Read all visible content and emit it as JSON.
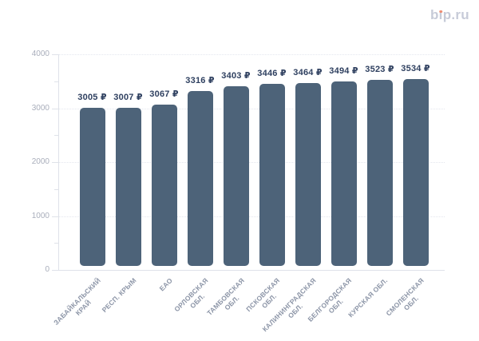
{
  "logo": {
    "text": "bip.ru",
    "part_b": "b",
    "part_i_dotless": "ı",
    "part_rest": "p.ru",
    "color": "#c7cbd8",
    "dot_color": "#ee8d73"
  },
  "chart_data": {
    "type": "bar",
    "title": "",
    "xlabel": "",
    "ylabel": "",
    "unit": "₽",
    "categories": [
      "ЗАБАЙКАЛЬСКИЙ КРАЙ",
      "РЕСП. КРЫМ",
      "ЕАО",
      "ОРЛОВСКАЯ ОБЛ.",
      "ТАМБОВСКАЯ ОБЛ.",
      "ПСКОВСКАЯ ОБЛ.",
      "КАЛИНИНГРАДСКАЯ ОБЛ.",
      "БЕЛГОРОДСКАЯ ОБЛ.",
      "КУРСКАЯ ОБЛ.",
      "СМОЛЕНСКАЯ ОБЛ."
    ],
    "x_label_lines": [
      [
        "ЗАБАЙКАЛЬСКИЙ",
        "КРАЙ"
      ],
      [
        "РЕСП. КРЫМ"
      ],
      [
        "ЕАО"
      ],
      [
        "ОРЛОВСКАЯ",
        "ОБЛ."
      ],
      [
        "ТАМБОВСКАЯ",
        "ОБЛ."
      ],
      [
        "ПСКОВСКАЯ",
        "ОБЛ."
      ],
      [
        "КАЛИНИНГРАДСКАЯ",
        "ОБЛ."
      ],
      [
        "БЕЛГОРОДСКАЯ",
        "ОБЛ."
      ],
      [
        "КУРСКАЯ ОБЛ."
      ],
      [
        "СМОЛЕНСКАЯ",
        "ОБЛ."
      ]
    ],
    "values": [
      3005,
      3007,
      3067,
      3316,
      3403,
      3446,
      3464,
      3494,
      3523,
      3534
    ],
    "value_labels": [
      "3005 ₽",
      "3007 ₽",
      "3067 ₽",
      "3316 ₽",
      "3403 ₽",
      "3446 ₽",
      "3464 ₽",
      "3494 ₽",
      "3523 ₽",
      "3534 ₽"
    ],
    "ylim": [
      0,
      4000
    ],
    "y_major_ticks": [
      4000,
      3000,
      2000,
      1000,
      0
    ],
    "y_minor_ticks": [
      3500,
      2500,
      1500,
      500
    ],
    "grid": {
      "horizontal_major": true,
      "style": "dotted"
    },
    "legend": null,
    "colors": {
      "bar": "#4d6379",
      "value_label": "#2f4060",
      "x_tick_label": "#8c95a7",
      "y_tick_label": "#a9aebb",
      "axis_line": "#dfe2e9",
      "gridline": "#e4e6ee"
    }
  }
}
